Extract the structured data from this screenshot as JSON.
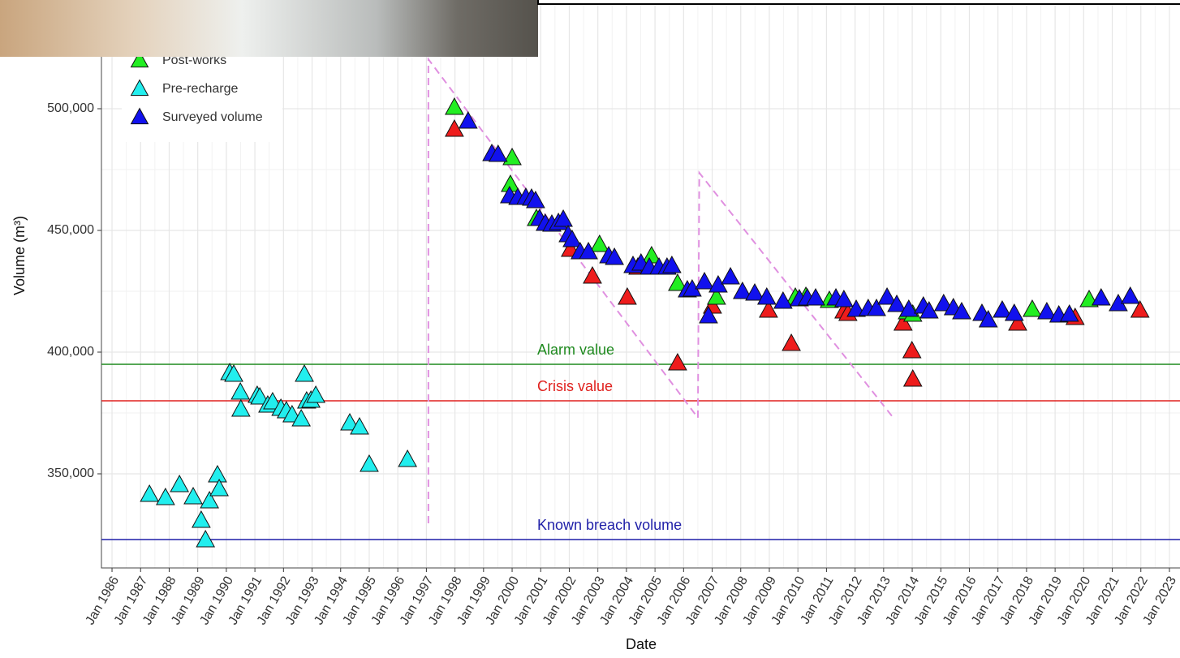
{
  "chart_data": {
    "type": "scatter",
    "x_label": "Date",
    "y_label": "Volume (m³)",
    "xlim": [
      1985.63,
      2023.37
    ],
    "ylim": [
      311333,
      544667
    ],
    "xticks": [
      {
        "value": 1986,
        "label": "Jan 1986"
      },
      {
        "value": 1987,
        "label": "Jan 1987"
      },
      {
        "value": 1988,
        "label": "Jan 1988"
      },
      {
        "value": 1989,
        "label": "Jan 1989"
      },
      {
        "value": 1990,
        "label": "Jan 1990"
      },
      {
        "value": 1991,
        "label": "Jan 1991"
      },
      {
        "value": 1992,
        "label": "Jan 1992"
      },
      {
        "value": 1993,
        "label": "Jan 1993"
      },
      {
        "value": 1994,
        "label": "Jan 1994"
      },
      {
        "value": 1995,
        "label": "Jan 1995"
      },
      {
        "value": 1996,
        "label": "Jan 1996"
      },
      {
        "value": 1997,
        "label": "Jan 1997"
      },
      {
        "value": 1998,
        "label": "Jan 1998"
      },
      {
        "value": 1999,
        "label": "Jan 1999"
      },
      {
        "value": 2000,
        "label": "Jan 2000"
      },
      {
        "value": 2001,
        "label": "Jan 2001"
      },
      {
        "value": 2002,
        "label": "Jan 2002"
      },
      {
        "value": 2003,
        "label": "Jan 2003"
      },
      {
        "value": 2004,
        "label": "Jan 2004"
      },
      {
        "value": 2005,
        "label": "Jan 2005"
      },
      {
        "value": 2006,
        "label": "Jan 2006"
      },
      {
        "value": 2007,
        "label": "Jan 2007"
      },
      {
        "value": 2008,
        "label": "Jan 2008"
      },
      {
        "value": 2009,
        "label": "Jan 2009"
      },
      {
        "value": 2010,
        "label": "Jan 2010"
      },
      {
        "value": 2011,
        "label": "Jan 2011"
      },
      {
        "value": 2012,
        "label": "Jan 2012"
      },
      {
        "value": 2013,
        "label": "Jan 2013"
      },
      {
        "value": 2014,
        "label": "Jan 2014"
      },
      {
        "value": 2015,
        "label": "Jan 2015"
      },
      {
        "value": 2016,
        "label": "Jan 2016"
      },
      {
        "value": 2017,
        "label": "Jan 2017"
      },
      {
        "value": 2018,
        "label": "Jan 2018"
      },
      {
        "value": 2019,
        "label": "Jan 2019"
      },
      {
        "value": 2020,
        "label": "Jan 2020"
      },
      {
        "value": 2021,
        "label": "Jan 2021"
      },
      {
        "value": 2022,
        "label": "Jan 2022"
      },
      {
        "value": 2023,
        "label": "Jan 2023"
      }
    ],
    "yticks": [
      {
        "value": 350000,
        "label": "350,000"
      },
      {
        "value": 400000,
        "label": "400,000"
      },
      {
        "value": 450000,
        "label": "450,000"
      },
      {
        "value": 500000,
        "label": "500,000"
      }
    ],
    "grid": true,
    "hlines": [
      {
        "value": 395000,
        "label": "Alarm value",
        "color": "#1f8a1f"
      },
      {
        "value": 380000,
        "label": "Crisis value",
        "color": "#e0211e"
      },
      {
        "value": 323000,
        "label": "Known breach volume",
        "color": "#1f1fa8"
      }
    ],
    "trend_line": {
      "color": "#e090e0",
      "x": [
        1997.07,
        1997.07,
        2006.5,
        2006.55,
        2013.34
      ],
      "y": [
        329667,
        520333,
        373000,
        473667,
        373000
      ]
    },
    "series": [
      {
        "color": "#ee1c1c",
        "x": [
          1997.98,
          2002.04,
          2002.81,
          2004.03,
          2004.4,
          2005.79,
          2007.01,
          2008.97,
          2009.77,
          2011.61,
          2011.75,
          2013.68,
          2013.99,
          2014.02,
          2017.69,
          2019.7,
          2021.97
        ],
        "values": [
          491333,
          442000,
          431000,
          422333,
          434667,
          395333,
          418667,
          417000,
          403333,
          416667,
          415667,
          411667,
          400333,
          388667,
          411667,
          414000,
          417000
        ]
      },
      {
        "name": "Post-works",
        "color": "#22ee22",
        "x": [
          1997.98,
          2000.0,
          1999.94,
          2000.85,
          2003.06,
          2004.88,
          2005.79,
          2007.15,
          2009.91,
          2010.28,
          2011.1,
          2013.83,
          2014.02,
          2018.2,
          2020.19
        ],
        "values": [
          500333,
          479667,
          468667,
          454667,
          444000,
          439333,
          428000,
          422333,
          422333,
          422667,
          421000,
          416333,
          415333,
          417333,
          421333
        ]
      },
      {
        "name": "Pre-recharge",
        "color": "#22eeee",
        "x": [
          1987.31,
          1987.87,
          1988.36,
          1988.84,
          1989.12,
          1989.27,
          1989.41,
          1989.69,
          1989.75,
          1990.12,
          1990.26,
          1990.49,
          1990.51,
          1991.08,
          1991.17,
          1991.45,
          1991.62,
          1991.91,
          1992.1,
          1992.3,
          1992.62,
          1992.73,
          1992.81,
          1992.96,
          1993.13,
          1994.32,
          1994.66,
          1995.0,
          1996.34
        ],
        "values": [
          341333,
          340000,
          345333,
          340333,
          330667,
          322667,
          338667,
          349333,
          343667,
          391333,
          390667,
          383333,
          376333,
          382000,
          381333,
          378000,
          379333,
          376667,
          375667,
          374000,
          372333,
          390667,
          379667,
          380000,
          382000,
          370667,
          369000,
          353667,
          355667
        ]
      },
      {
        "name": "Surveyed volume",
        "color": "#1111ee",
        "x": [
          1998.46,
          1999.29,
          1999.51,
          1999.91,
          2000.2,
          2000.48,
          2000.68,
          2000.82,
          2000.96,
          2001.16,
          2001.39,
          2001.62,
          2001.79,
          2001.96,
          2002.1,
          2002.38,
          2002.67,
          2003.38,
          2003.58,
          2004.23,
          2004.51,
          2004.8,
          2005.14,
          2005.42,
          2005.59,
          2006.13,
          2006.3,
          2006.73,
          2006.87,
          2007.21,
          2007.64,
          2008.06,
          2008.49,
          2008.91,
          2009.48,
          2010.05,
          2010.33,
          2010.62,
          2011.33,
          2011.61,
          2012.04,
          2012.46,
          2012.75,
          2013.12,
          2013.46,
          2013.88,
          2014.39,
          2014.59,
          2015.1,
          2015.44,
          2015.73,
          2016.44,
          2016.66,
          2017.15,
          2017.57,
          2018.71,
          2019.13,
          2019.5,
          2020.61,
          2021.21,
          2021.63
        ],
        "values": [
          494667,
          481333,
          481000,
          464000,
          463333,
          463333,
          463000,
          462000,
          454667,
          452667,
          452333,
          453000,
          454333,
          448000,
          446000,
          441000,
          441000,
          439333,
          438667,
          435333,
          436333,
          434667,
          434667,
          434667,
          435333,
          425333,
          425667,
          428667,
          414667,
          427333,
          430667,
          424667,
          424000,
          422333,
          420667,
          421667,
          422000,
          422000,
          422000,
          421333,
          417333,
          417667,
          417667,
          422333,
          419333,
          417333,
          418667,
          416667,
          419667,
          418000,
          416333,
          415667,
          413000,
          417000,
          415667,
          416333,
          415000,
          415333,
          422000,
          419667,
          422667
        ]
      }
    ]
  }
}
